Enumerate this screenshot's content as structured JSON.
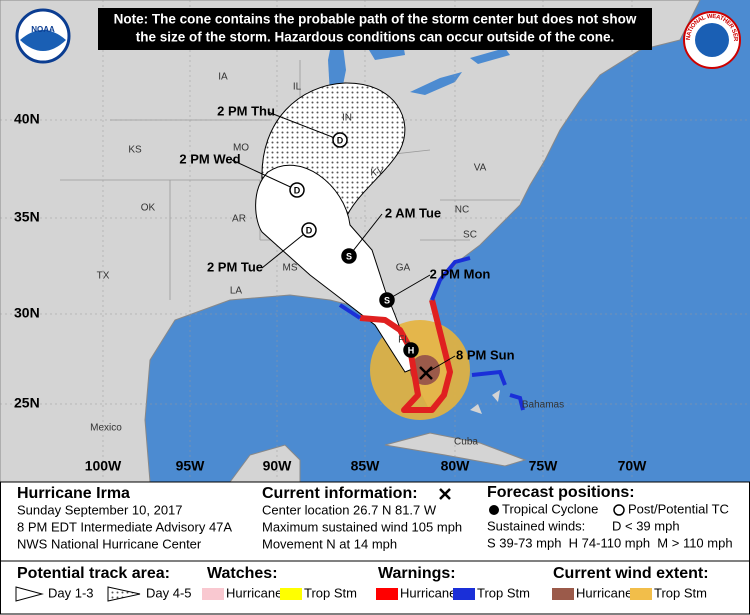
{
  "note": {
    "lines": [
      "Note: The cone contains the probable path of the storm center but does not show",
      "the size of the storm. Hazardous conditions can occur outside of the cone."
    ]
  },
  "logos": {
    "noaa": "NOAA",
    "nws": "NATIONAL WEATHER SERVICE"
  },
  "map": {
    "lat_labels": [
      "40N",
      "35N",
      "30N",
      "25N"
    ],
    "lon_labels": [
      "100W",
      "95W",
      "90W",
      "85W",
      "80W",
      "75W",
      "70W"
    ],
    "region_labels": [
      "IA",
      "IL",
      "IN",
      "KS",
      "MO",
      "KY",
      "OK",
      "AR",
      "TX",
      "LA",
      "MS",
      "GA",
      "SC",
      "NC",
      "VA",
      "FL",
      "Mexico",
      "Cuba",
      "Bahamas"
    ],
    "track_points": [
      {
        "label": "2 PM Thu",
        "marker": "D"
      },
      {
        "label": "2 PM Wed",
        "marker": "D"
      },
      {
        "label": "2 PM Tue",
        "marker": "D"
      },
      {
        "label": "2 AM Tue",
        "marker": "S"
      },
      {
        "label": "2 PM Mon",
        "marker": "S"
      },
      {
        "marker": "H"
      }
    ],
    "current_label": "8 PM Sun"
  },
  "panel": {
    "storm": [
      "Hurricane Irma",
      "Sunday September 10, 2017",
      "8 PM EDT Intermediate Advisory 47A",
      "NWS National Hurricane Center"
    ],
    "current": [
      "Current information:",
      "Center location 26.7 N 81.7 W",
      "Maximum sustained wind 105 mph",
      "Movement N at 14 mph"
    ],
    "forecast": {
      "title": "Forecast positions:",
      "tropical": "Tropical Cyclone",
      "post": "Post/Potential TC",
      "winds": "Sustained winds:",
      "d": "D < 39 mph",
      "scale": "S 39-73 mph  H 74-110 mph  M > 110 mph"
    },
    "legend": {
      "track_title": "Potential track area:",
      "day13": "Day 1-3",
      "day45": "Day 4-5",
      "watches_title": "Watches:",
      "watch_hurricane": "Hurricane",
      "watch_ts": "Trop Stm",
      "warnings_title": "Warnings:",
      "warn_hurricane": "Hurricane",
      "warn_ts": "Trop Stm",
      "wind_title": "Current wind extent:",
      "wind_hurricane": "Hurricane",
      "wind_ts": "Trop Stm"
    }
  }
}
